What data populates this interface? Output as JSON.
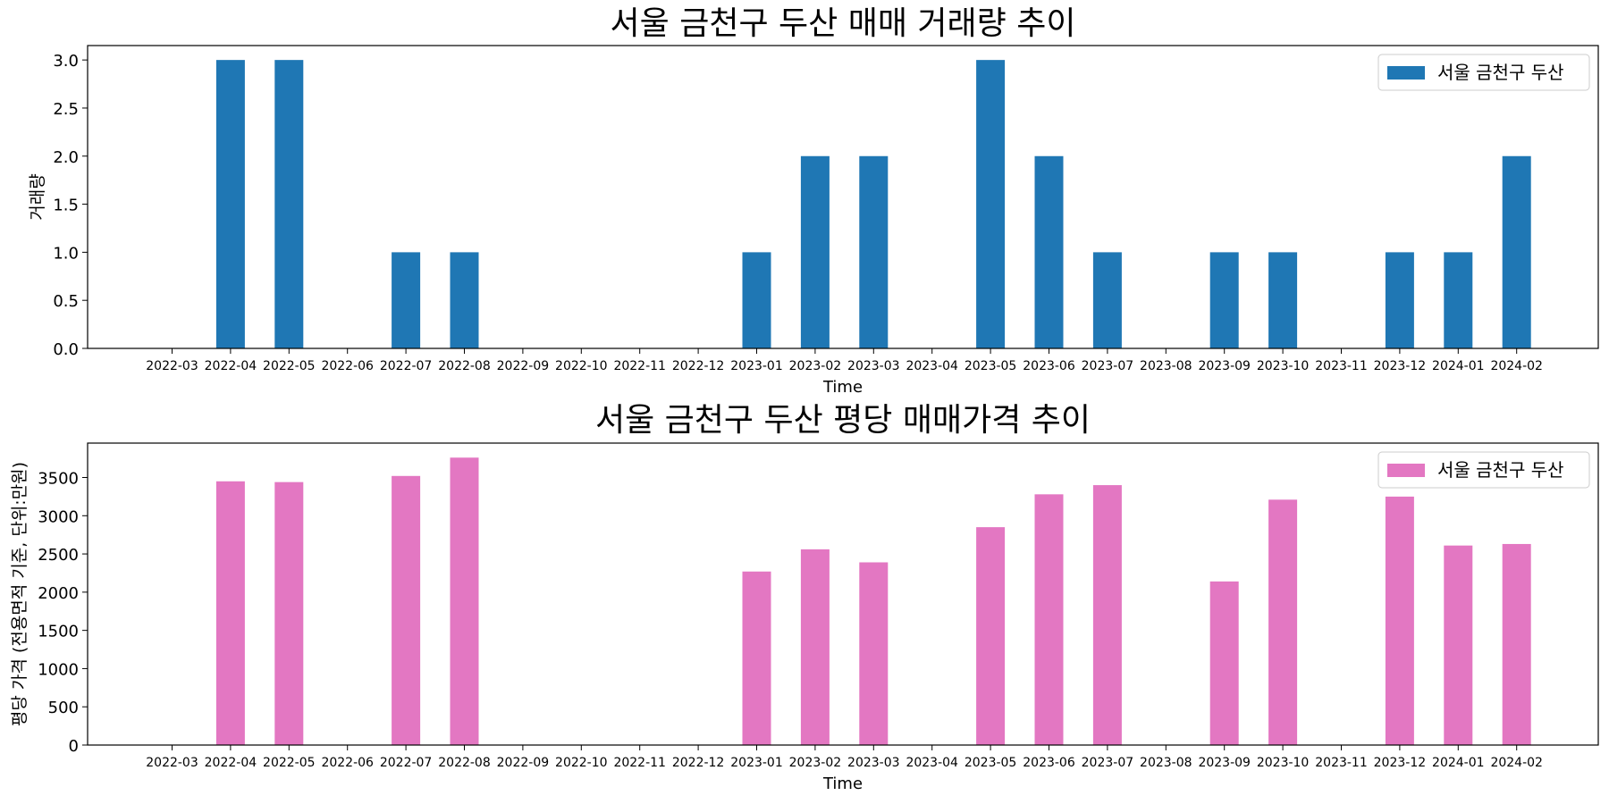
{
  "chart_data": [
    {
      "type": "bar",
      "title": "서울 금천구 두산 매매 거래량 추이",
      "xlabel": "Time",
      "ylabel": "거래량",
      "ylim": [
        0,
        3.15
      ],
      "yticks": [
        "0.0",
        "0.5",
        "1.0",
        "1.5",
        "2.0",
        "2.5",
        "3.0"
      ],
      "categories": [
        "2022-03",
        "2022-04",
        "2022-05",
        "2022-06",
        "2022-07",
        "2022-08",
        "2022-09",
        "2022-10",
        "2022-11",
        "2022-12",
        "2023-01",
        "2023-02",
        "2023-03",
        "2023-04",
        "2023-05",
        "2023-06",
        "2023-07",
        "2023-08",
        "2023-09",
        "2023-10",
        "2023-11",
        "2023-12",
        "2024-01",
        "2024-02"
      ],
      "series": [
        {
          "name": "서울 금천구 두산",
          "color": "#1f77b4",
          "values": [
            0,
            3,
            3,
            0,
            1,
            1,
            0,
            0,
            0,
            0,
            1,
            2,
            2,
            0,
            3,
            2,
            1,
            0,
            1,
            1,
            0,
            1,
            1,
            2
          ]
        }
      ],
      "legend": "top-right"
    },
    {
      "type": "bar",
      "title": "서울 금천구 두산 평당 매매가격 추이",
      "xlabel": "Time",
      "ylabel": "평당 가격 (전용면적 기준, 단위:만원)",
      "ylim": [
        0,
        3950
      ],
      "yticks": [
        "0",
        "500",
        "1000",
        "1500",
        "2000",
        "2500",
        "3000",
        "3500"
      ],
      "categories": [
        "2022-03",
        "2022-04",
        "2022-05",
        "2022-06",
        "2022-07",
        "2022-08",
        "2022-09",
        "2022-10",
        "2022-11",
        "2022-12",
        "2023-01",
        "2023-02",
        "2023-03",
        "2023-04",
        "2023-05",
        "2023-06",
        "2023-07",
        "2023-08",
        "2023-09",
        "2023-10",
        "2023-11",
        "2023-12",
        "2024-01",
        "2024-02"
      ],
      "series": [
        {
          "name": "서울 금천구 두산",
          "color": "#e377c2",
          "values": [
            0,
            3450,
            3440,
            0,
            3520,
            3760,
            0,
            0,
            0,
            0,
            2270,
            2560,
            2390,
            0,
            2850,
            3280,
            3400,
            0,
            2140,
            3210,
            0,
            3250,
            2610,
            2630
          ]
        }
      ],
      "legend": "top-right"
    }
  ]
}
